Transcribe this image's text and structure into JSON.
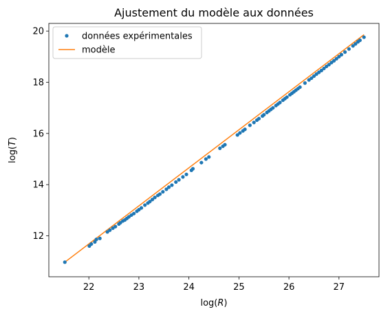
{
  "chart_data": {
    "type": "scatter",
    "title": "Ajustement du modèle aux données",
    "xlabel": "log(R)",
    "ylabel": "log(T)",
    "xlim": [
      21.2,
      27.8
    ],
    "ylim": [
      10.4,
      20.3
    ],
    "xticks": [
      22,
      23,
      24,
      25,
      26,
      27
    ],
    "yticks": [
      12,
      14,
      16,
      18,
      20
    ],
    "grid": false,
    "legend_position": "top-left",
    "series": [
      {
        "name": "données expérimentales",
        "kind": "scatter",
        "color": "#1f77b4",
        "x": [
          21.52,
          22.01,
          22.05,
          22.12,
          22.15,
          22.22,
          22.37,
          22.42,
          22.48,
          22.53,
          22.6,
          22.63,
          22.68,
          22.72,
          22.76,
          22.8,
          22.85,
          22.9,
          22.96,
          23.0,
          23.05,
          23.12,
          23.18,
          23.22,
          23.27,
          23.32,
          23.38,
          23.42,
          23.48,
          23.55,
          23.6,
          23.66,
          23.74,
          23.8,
          23.88,
          23.95,
          24.05,
          24.08,
          24.25,
          24.34,
          24.4,
          24.62,
          24.68,
          24.72,
          24.97,
          25.02,
          25.08,
          25.12,
          25.22,
          25.3,
          25.36,
          25.4,
          25.47,
          25.5,
          25.56,
          25.6,
          25.64,
          25.68,
          25.74,
          25.78,
          25.82,
          25.88,
          25.92,
          25.96,
          26.02,
          26.06,
          26.1,
          26.14,
          26.18,
          26.22,
          26.32,
          26.4,
          26.45,
          26.5,
          26.55,
          26.6,
          26.65,
          26.7,
          26.75,
          26.8,
          26.85,
          26.9,
          26.95,
          27.0,
          27.05,
          27.12,
          27.2,
          27.28,
          27.33,
          27.38,
          27.42,
          27.5
        ],
        "y": [
          10.97,
          11.6,
          11.68,
          11.76,
          11.86,
          11.9,
          12.15,
          12.22,
          12.3,
          12.36,
          12.46,
          12.51,
          12.58,
          12.62,
          12.68,
          12.74,
          12.81,
          12.87,
          12.96,
          13.02,
          13.09,
          13.2,
          13.28,
          13.34,
          13.42,
          13.5,
          13.58,
          13.63,
          13.72,
          13.82,
          13.9,
          13.98,
          14.1,
          14.19,
          14.3,
          14.4,
          14.56,
          14.62,
          14.86,
          15.0,
          15.08,
          15.42,
          15.5,
          15.56,
          15.94,
          16.02,
          16.1,
          16.16,
          16.32,
          16.43,
          16.52,
          16.58,
          16.68,
          16.73,
          16.82,
          16.88,
          16.94,
          17.0,
          17.09,
          17.15,
          17.21,
          17.3,
          17.36,
          17.42,
          17.51,
          17.57,
          17.63,
          17.69,
          17.75,
          17.81,
          17.97,
          18.09,
          18.16,
          18.24,
          18.32,
          18.39,
          18.46,
          18.54,
          18.62,
          18.69,
          18.77,
          18.84,
          18.92,
          19.0,
          19.08,
          19.18,
          19.3,
          19.42,
          19.5,
          19.58,
          19.64,
          19.76
        ]
      },
      {
        "name": "modèle",
        "kind": "line",
        "color": "#ff7f0e",
        "x": [
          21.52,
          27.5
        ],
        "y": [
          10.97,
          19.86
        ]
      }
    ]
  }
}
